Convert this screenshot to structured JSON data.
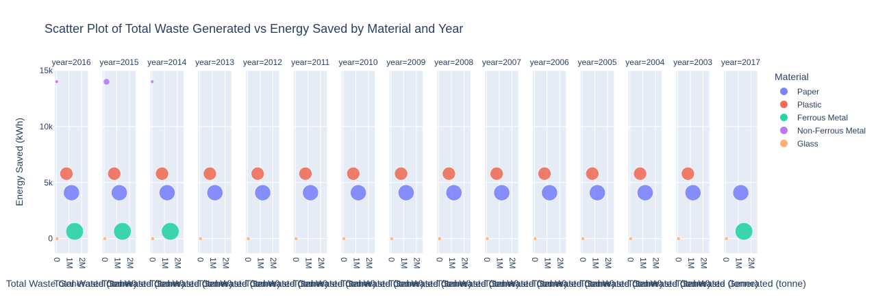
{
  "chart_data": {
    "type": "scatter",
    "title": "Scatter Plot of Total Waste Generated vs Energy Saved by Material and Year",
    "xlabel": "Total Waste Generated (tonne)",
    "ylabel": "Energy Saved (kWh)",
    "xlim": [
      -120000,
      2500000
    ],
    "ylim": [
      -1300,
      15000
    ],
    "x_ticks": [
      0,
      1000000,
      2000000
    ],
    "x_tick_labels": [
      "0",
      "1M",
      "2M"
    ],
    "y_ticks": [
      0,
      5000,
      10000,
      15000
    ],
    "y_tick_labels": [
      "0",
      "5k",
      "10k",
      "15k"
    ],
    "legend_title": "Material",
    "legend_position": "right",
    "bubble_size_basis": "Total Waste Generated",
    "panels": [
      {
        "label": "year=2016",
        "points": [
          {
            "material": "Paper",
            "x": 1200000,
            "y": 4100
          },
          {
            "material": "Plastic",
            "x": 800000,
            "y": 5800
          },
          {
            "material": "Ferrous Metal",
            "x": 1450000,
            "y": 650
          },
          {
            "material": "Non-Ferrous Metal",
            "x": 30000,
            "y": 14000
          },
          {
            "material": "Glass",
            "x": 60000,
            "y": 0
          }
        ]
      },
      {
        "label": "year=2015",
        "points": [
          {
            "material": "Paper",
            "x": 1200000,
            "y": 4100
          },
          {
            "material": "Plastic",
            "x": 800000,
            "y": 5800
          },
          {
            "material": "Ferrous Metal",
            "x": 1450000,
            "y": 650
          },
          {
            "material": "Non-Ferrous Metal",
            "x": 190000,
            "y": 14000
          },
          {
            "material": "Glass",
            "x": 60000,
            "y": 0
          }
        ]
      },
      {
        "label": "year=2014",
        "points": [
          {
            "material": "Paper",
            "x": 1200000,
            "y": 4100
          },
          {
            "material": "Plastic",
            "x": 800000,
            "y": 5800
          },
          {
            "material": "Ferrous Metal",
            "x": 1450000,
            "y": 650
          },
          {
            "material": "Non-Ferrous Metal",
            "x": 30000,
            "y": 14000
          },
          {
            "material": "Glass",
            "x": 60000,
            "y": 0
          }
        ]
      },
      {
        "label": "year=2013",
        "points": [
          {
            "material": "Paper",
            "x": 1200000,
            "y": 4100
          },
          {
            "material": "Plastic",
            "x": 800000,
            "y": 5800
          },
          {
            "material": "Glass",
            "x": 60000,
            "y": 0
          }
        ]
      },
      {
        "label": "year=2012",
        "points": [
          {
            "material": "Paper",
            "x": 1200000,
            "y": 4100
          },
          {
            "material": "Plastic",
            "x": 800000,
            "y": 5800
          },
          {
            "material": "Glass",
            "x": 60000,
            "y": 0
          }
        ]
      },
      {
        "label": "year=2011",
        "points": [
          {
            "material": "Paper",
            "x": 1200000,
            "y": 4100
          },
          {
            "material": "Plastic",
            "x": 800000,
            "y": 5800
          },
          {
            "material": "Glass",
            "x": 60000,
            "y": 0
          }
        ]
      },
      {
        "label": "year=2010",
        "points": [
          {
            "material": "Paper",
            "x": 1200000,
            "y": 4100
          },
          {
            "material": "Plastic",
            "x": 800000,
            "y": 5800
          },
          {
            "material": "Glass",
            "x": 60000,
            "y": 0
          }
        ]
      },
      {
        "label": "year=2009",
        "points": [
          {
            "material": "Paper",
            "x": 1200000,
            "y": 4100
          },
          {
            "material": "Plastic",
            "x": 800000,
            "y": 5800
          },
          {
            "material": "Glass",
            "x": 60000,
            "y": 0
          }
        ]
      },
      {
        "label": "year=2008",
        "points": [
          {
            "material": "Paper",
            "x": 1200000,
            "y": 4100
          },
          {
            "material": "Plastic",
            "x": 800000,
            "y": 5800
          },
          {
            "material": "Glass",
            "x": 60000,
            "y": 0
          }
        ]
      },
      {
        "label": "year=2007",
        "points": [
          {
            "material": "Paper",
            "x": 1200000,
            "y": 4100
          },
          {
            "material": "Plastic",
            "x": 800000,
            "y": 5800
          },
          {
            "material": "Glass",
            "x": 60000,
            "y": 0
          }
        ]
      },
      {
        "label": "year=2006",
        "points": [
          {
            "material": "Paper",
            "x": 1200000,
            "y": 4100
          },
          {
            "material": "Plastic",
            "x": 800000,
            "y": 5800
          },
          {
            "material": "Glass",
            "x": 60000,
            "y": 0
          }
        ]
      },
      {
        "label": "year=2005",
        "points": [
          {
            "material": "Paper",
            "x": 1200000,
            "y": 4100
          },
          {
            "material": "Plastic",
            "x": 800000,
            "y": 5800
          },
          {
            "material": "Glass",
            "x": 60000,
            "y": 0
          }
        ]
      },
      {
        "label": "year=2004",
        "points": [
          {
            "material": "Paper",
            "x": 1200000,
            "y": 4100
          },
          {
            "material": "Plastic",
            "x": 800000,
            "y": 5800
          },
          {
            "material": "Glass",
            "x": 60000,
            "y": 0
          }
        ]
      },
      {
        "label": "year=2003",
        "points": [
          {
            "material": "Paper",
            "x": 1200000,
            "y": 4100
          },
          {
            "material": "Plastic",
            "x": 800000,
            "y": 5800
          },
          {
            "material": "Glass",
            "x": 60000,
            "y": 0
          }
        ]
      },
      {
        "label": "year=2017",
        "points": [
          {
            "material": "Paper",
            "x": 1200000,
            "y": 4100
          },
          {
            "material": "Ferrous Metal",
            "x": 1450000,
            "y": 650
          },
          {
            "material": "Glass",
            "x": 60000,
            "y": 0
          }
        ]
      }
    ],
    "series": [
      {
        "name": "Paper",
        "color": "#636efa"
      },
      {
        "name": "Plastic",
        "color": "#EF553B"
      },
      {
        "name": "Ferrous Metal",
        "color": "#00cc96"
      },
      {
        "name": "Non-Ferrous Metal",
        "color": "#ab63fa"
      },
      {
        "name": "Glass",
        "color": "#FFA15A"
      }
    ]
  },
  "colors": {
    "plot_bg": "#E5ECF6",
    "grid": "#ffffff",
    "text": "#2a3f5f"
  }
}
